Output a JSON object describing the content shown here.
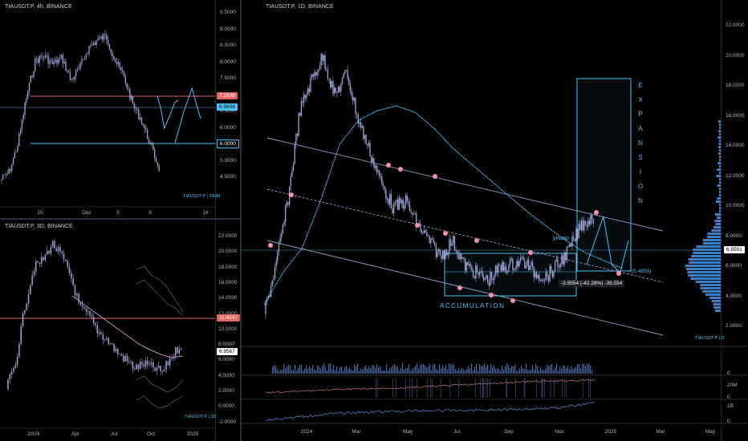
{
  "colors": {
    "background": "#000000",
    "cyan": "#4fc3f7",
    "red_line": "#e06666",
    "pink_dot": "#f48fb1",
    "candle": "#9fa8da",
    "grid": "#2a2e39"
  },
  "panel_4h": {
    "title": "TIAUSDT.P, 4h, BINANCE",
    "price_ticks": [
      "9.5000",
      "9.0000",
      "8.5000",
      "8.0000",
      "7.5000",
      "7.0000",
      "6.5000",
      "6.0000",
      "5.5000",
      "5.0000",
      "4.5000"
    ],
    "time_ticks": [
      "25",
      "Dec",
      "5",
      "9",
      "16"
    ],
    "red_level": "7.2839",
    "last_price": "6.9608",
    "cyan_level": "6.0000",
    "signature": "TIAUSDT.P | 240M"
  },
  "panel_3d": {
    "title": "TIAUSDT.P, 3D, BINANCE",
    "price_ticks": [
      "22.0000",
      "20.0000",
      "18.0000",
      "16.0000",
      "14.0000",
      "12.0000",
      "10.0000",
      "8.0000",
      "6.0000",
      "4.0000",
      "2.0000",
      "0.0000",
      "-2.0000"
    ],
    "time_ticks": [
      "2024",
      "Apr",
      "Jul",
      "Oct",
      "2025"
    ],
    "red_level": "11.4247",
    "last_price": "6.9567",
    "signature": "TIAUSDT.P | 3D"
  },
  "panel_1d": {
    "title": "TIAUSDT.P, 1D, BINANCE",
    "price_ticks": [
      "22.0000",
      "20.0000",
      "18.0000",
      "16.0000",
      "14.0000",
      "12.0000",
      "10.0000",
      "8.0000",
      "6.0000",
      "4.0000",
      "2.0000"
    ],
    "time_ticks": [
      "2024",
      "Mar",
      "May",
      "Jul",
      "Sep",
      "Nov",
      "2025",
      "Mar",
      "May"
    ],
    "last_price": "6.9591",
    "vwap_label": "yvwap",
    "vwap_value": "(5.4859)",
    "measure_label": "-3.9554 (-42.28%) -39,554",
    "accumulation_label": "ACCUMULATION",
    "expansion_letters": [
      "E",
      "X",
      "P",
      "A",
      "N",
      "S",
      "I",
      "O",
      "N"
    ],
    "signature": "TIAUSDT.P | D",
    "sub_ticks": {
      "volume": "0",
      "osc_top": "20M",
      "osc_bottom": "0",
      "obv": "1B",
      "obv_bottom": "0"
    }
  }
}
